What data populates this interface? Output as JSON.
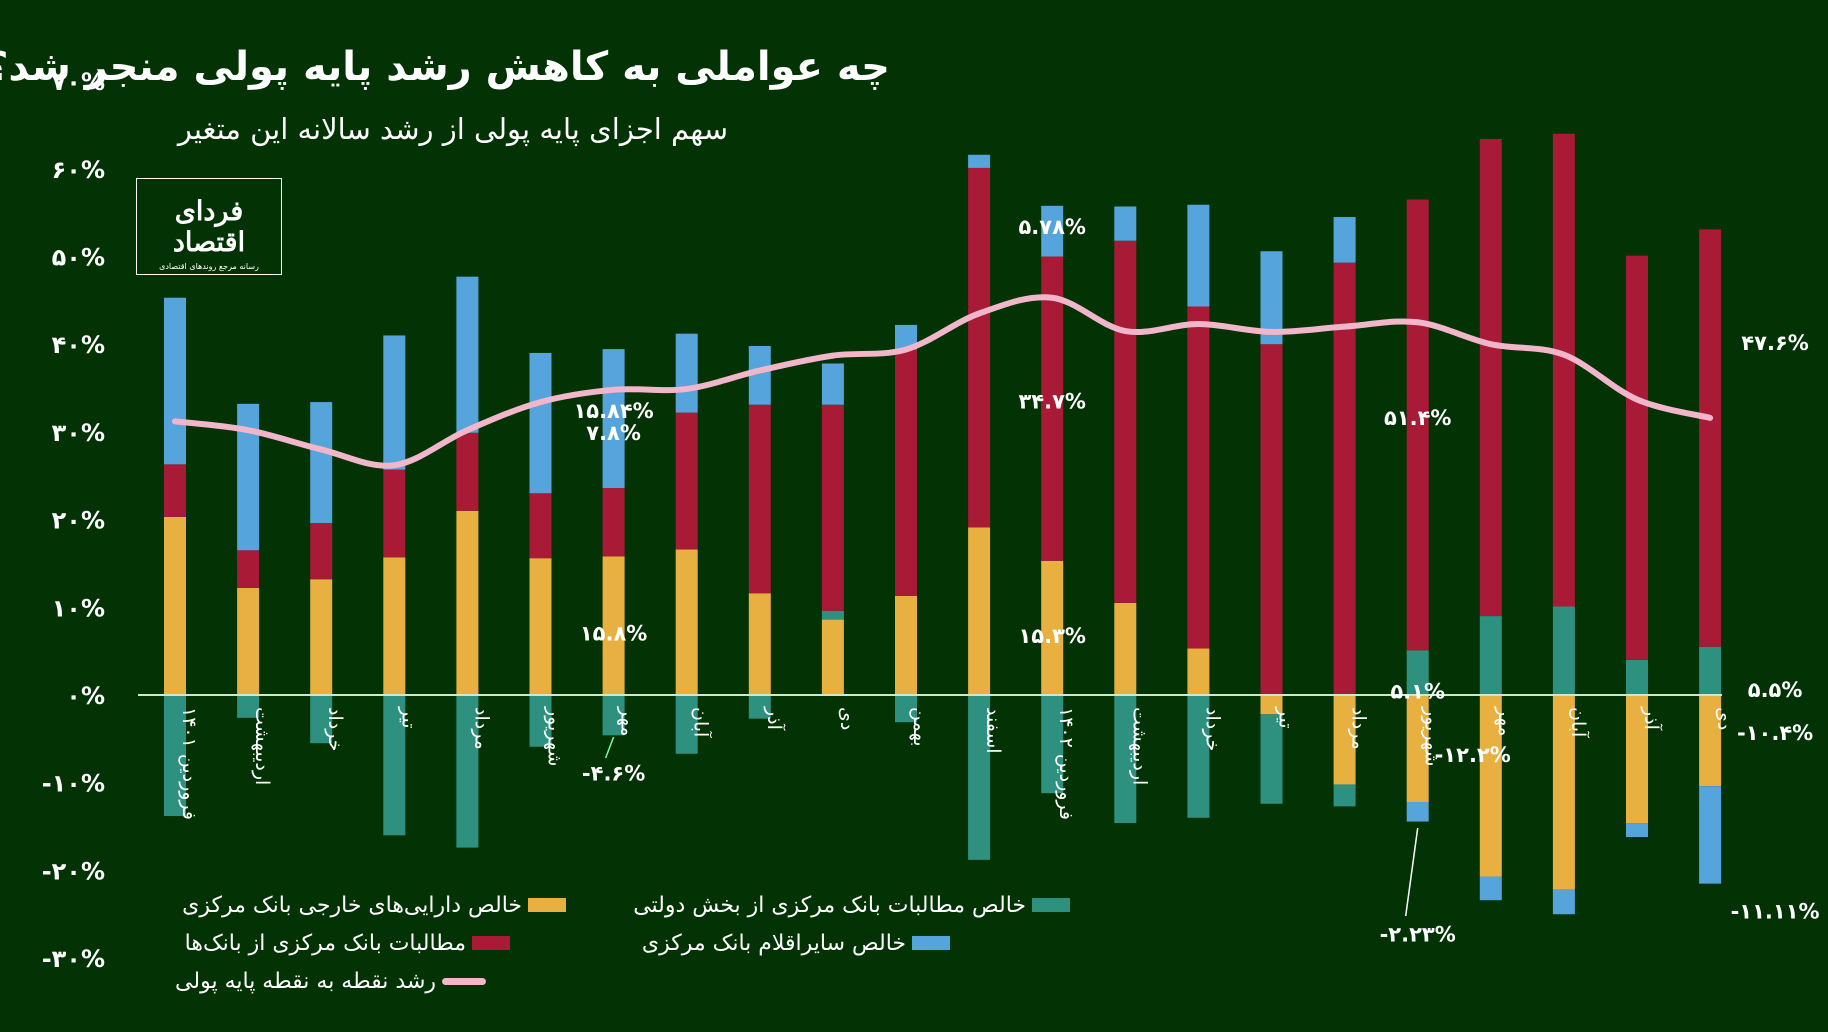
{
  "title": "چه عواملی به کاهش رشد پایه پولی منجر شد؟",
  "subtitle": "سهم اجزای پایه پولی از رشد سالانه این متغیر",
  "logo": {
    "name": "فردای اقتصاد",
    "tagline": "رسانه مرجع روندهای اقتصادی"
  },
  "colors": {
    "background": "#033205",
    "foreign_assets": "#E8B040",
    "gov_claims": "#2E9180",
    "bank_claims": "#A81A35",
    "other_items": "#55A4DC",
    "growth_line": "#F2B6CB",
    "axis": "#CFE8C9"
  },
  "legend": [
    {
      "key": "foreign_assets",
      "label": "خالص دارایی‌های خارجی بانک مرکزی"
    },
    {
      "key": "gov_claims",
      "label": "خالص مطالبات بانک مرکزی از بخش دولتی"
    },
    {
      "key": "bank_claims",
      "label": "مطالبات بانک مرکزی از بانک‌ها"
    },
    {
      "key": "other_items",
      "label": "خالص سایراقلام بانک مرکزی"
    },
    {
      "key": "growth_line",
      "label": "رشد نقطه به نقطه پایه پولی"
    }
  ],
  "chart_data": {
    "type": "bar",
    "stacked": true,
    "title": "چه عواملی به کاهش رشد پایه پولی منجر شد؟",
    "subtitle": "سهم اجزای پایه پولی از رشد سالانه این متغیر",
    "ylim": [
      -30,
      70
    ],
    "yticks": [
      70,
      60,
      50,
      40,
      30,
      20,
      10,
      0,
      -10,
      -20,
      -30
    ],
    "ytick_labels": [
      "۷۰%",
      "۶۰%",
      "۵۰%",
      "۴۰%",
      "۳۰%",
      "۲۰%",
      "۱۰%",
      "۰%",
      "-۱۰%",
      "-۲۰%",
      "-۳۰%"
    ],
    "categories": [
      "فروردین ۱۴۰۱",
      "اردیبهشت",
      "خرداد",
      "تیر",
      "مرداد",
      "شهریور",
      "مهر",
      "آبان",
      "آذر",
      "دی",
      "بهمن",
      "اسفند",
      "فروردین ۱۴۰۲",
      "اردیبهشت",
      "خرداد",
      "تیر",
      "مرداد",
      "شهریور",
      "مهر",
      "آبان",
      "آذر",
      "دی"
    ],
    "series": [
      {
        "name": "خالص دارایی‌های خارجی بانک مرکزی",
        "key": "foreign_assets",
        "values": [
          20.3,
          12.2,
          13.2,
          15.7,
          21.0,
          15.6,
          15.8,
          16.6,
          11.6,
          8.6,
          11.3,
          19.1,
          15.3,
          10.5,
          5.3,
          -2.2,
          -10.2,
          -12.2,
          -20.7,
          -22.2,
          -14.6,
          -10.4
        ]
      },
      {
        "name": "خالص مطالبات بانک مرکزی از بخش دولتی",
        "key": "gov_claims",
        "values": [
          -13.8,
          -2.6,
          -5.5,
          -16.0,
          -17.4,
          -5.9,
          -4.6,
          -6.7,
          -2.7,
          1.0,
          -3.1,
          -18.8,
          -11.2,
          -14.6,
          -14.0,
          -10.2,
          -2.5,
          5.1,
          9.0,
          10.1,
          4.0,
          5.5
        ]
      },
      {
        "name": "مطالبات بانک مرکزی از بانک‌ها",
        "key": "bank_claims",
        "values": [
          6.0,
          4.3,
          6.4,
          10.0,
          8.9,
          7.4,
          7.8,
          15.6,
          21.5,
          23.5,
          28.1,
          41.0,
          34.7,
          41.3,
          39.0,
          40.0,
          49.3,
          51.4,
          54.4,
          53.9,
          46.1,
          47.6
        ]
      },
      {
        "name": "خالص سایراقلام بانک مرکزی",
        "key": "other_items",
        "values": [
          19.0,
          16.7,
          13.8,
          15.3,
          17.8,
          16.0,
          15.84,
          9.0,
          6.7,
          4.7,
          2.8,
          1.5,
          5.78,
          3.9,
          11.6,
          10.6,
          5.2,
          -2.23,
          -2.7,
          -2.8,
          -1.6,
          -11.11
        ]
      }
    ],
    "line": {
      "name": "رشد نقطه به نقطه پایه پولی",
      "key": "growth_line",
      "values": [
        31.2,
        30.2,
        28.0,
        26.2,
        30.2,
        33.4,
        34.8,
        34.9,
        37.0,
        38.7,
        39.4,
        43.5,
        45.3,
        41.5,
        42.3,
        41.4,
        42.0,
        42.5,
        40.0,
        38.8,
        33.7,
        31.6
      ]
    },
    "annotations": [
      {
        "index": 6,
        "series": "other_items",
        "text": "۱۵.۸۴%"
      },
      {
        "index": 6,
        "series": "bank_claims",
        "text": "۷.۸%"
      },
      {
        "index": 6,
        "series": "foreign_assets",
        "text": "۱۵.۸%"
      },
      {
        "index": 6,
        "series": "gov_claims",
        "text": "-۴.۶%"
      },
      {
        "index": 12,
        "series": "other_items",
        "text": "۵.۷۸%"
      },
      {
        "index": 12,
        "series": "bank_claims",
        "text": "۳۴.۷%"
      },
      {
        "index": 12,
        "series": "foreign_assets",
        "text": "۱۵.۳%"
      },
      {
        "index": 17,
        "series": "bank_claims",
        "text": "۵۱.۴%"
      },
      {
        "index": 17,
        "series": "gov_claims",
        "text": "۵.۱%"
      },
      {
        "index": 17,
        "series": "foreign_assets",
        "text": "-۱۲.۲%"
      },
      {
        "index": 17,
        "series": "other_items",
        "text": "-۲.۲۳%"
      },
      {
        "index": 21,
        "series": "bank_claims",
        "text": "۴۷.۶%"
      },
      {
        "index": 21,
        "series": "gov_claims",
        "text": "۵.۵%"
      },
      {
        "index": 21,
        "series": "foreign_assets",
        "text": "-۱۰.۴%"
      },
      {
        "index": 21,
        "series": "other_items",
        "text": "-۱۱.۱۱%"
      }
    ]
  }
}
